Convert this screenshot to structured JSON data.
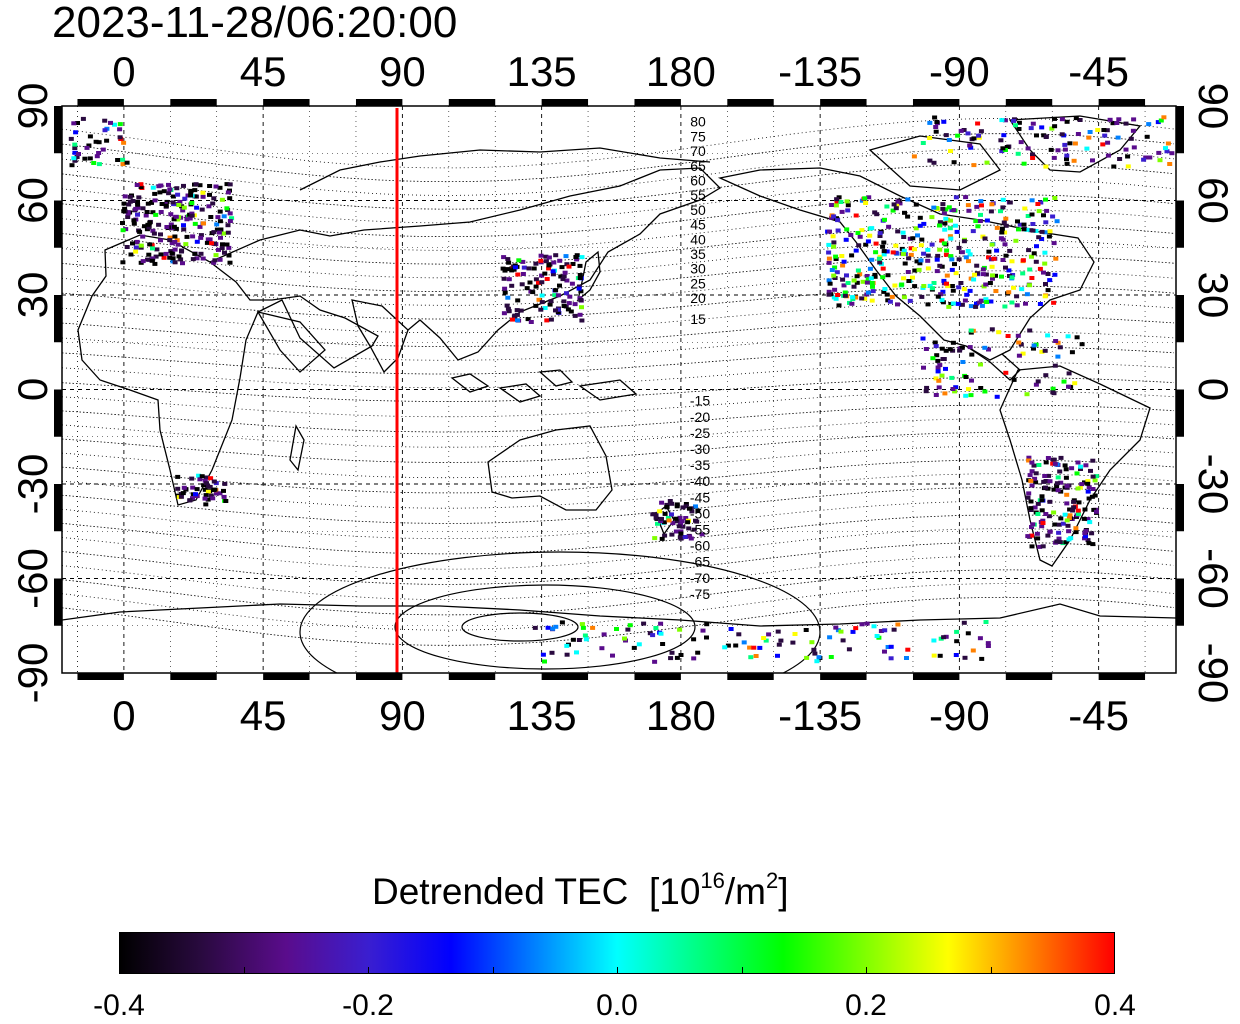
{
  "timestamp": "2023-11-28/06:20:00",
  "map": {
    "top_lon_labels": [
      "0",
      "45",
      "90",
      "135",
      "180",
      "-135",
      "-90",
      "-45"
    ],
    "bottom_lon_labels": [
      "0",
      "45",
      "90",
      "135",
      "180",
      "-135",
      "-90",
      "-45"
    ],
    "left_lat_labels": [
      "90",
      "60",
      "30",
      "0",
      "-30",
      "-60",
      "-90"
    ],
    "right_lat_labels": [
      "90",
      "60",
      "30",
      "0",
      "-30",
      "-60",
      "-90"
    ],
    "north_contour_labels": [
      "80",
      "75",
      "70",
      "65",
      "60",
      "55",
      "50",
      "45",
      "40",
      "35",
      "30",
      "25",
      "20",
      "15"
    ],
    "south_contour_labels": [
      "-15",
      "-20",
      "-25",
      "-30",
      "-35",
      "-40",
      "-45",
      "-50",
      "-55",
      "-60",
      "-65",
      "-70",
      "-75"
    ],
    "terminator_longitude": 86,
    "terminator_color": "#ff0000"
  },
  "colorbar": {
    "title": "Detrended TEC",
    "unit_base": "[10",
    "unit_exp": "16",
    "unit_mid": "/m",
    "unit_exp2": "2",
    "unit_close": "]",
    "min": -0.4,
    "max": 0.4,
    "tick_labels": [
      "-0.4",
      "-0.2",
      "0.0",
      "0.2",
      "0.4"
    ],
    "colors": [
      "#000000",
      "#2a0a40",
      "#5a0c8c",
      "#3a1ed0",
      "#0000ff",
      "#0080ff",
      "#00ffff",
      "#00ff80",
      "#00ff00",
      "#80ff00",
      "#ffff00",
      "#ff8000",
      "#ff0000"
    ]
  }
}
